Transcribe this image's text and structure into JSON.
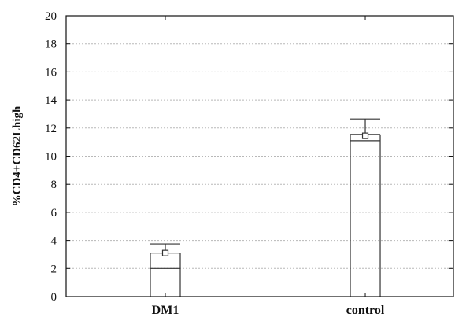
{
  "chart_data": {
    "type": "bar",
    "title": "",
    "xlabel": "",
    "ylabel": "%CD4+CD62Lhigh",
    "categories": [
      "DM1",
      "control"
    ],
    "box": [
      {
        "category": "DM1",
        "q1": 2.0,
        "q3": 3.1,
        "mean": 3.1,
        "whisker_high": 3.75
      },
      {
        "category": "control",
        "q1": 11.1,
        "q3": 11.55,
        "mean": 11.45,
        "whisker_high": 12.65
      }
    ],
    "ylim": [
      0,
      20
    ],
    "yticks": [
      0,
      2,
      4,
      6,
      8,
      10,
      12,
      14,
      16,
      18,
      20
    ],
    "grid": true,
    "colors": {
      "axis": "#111111",
      "grid": "#b8b8b8",
      "box": "#333333"
    }
  }
}
